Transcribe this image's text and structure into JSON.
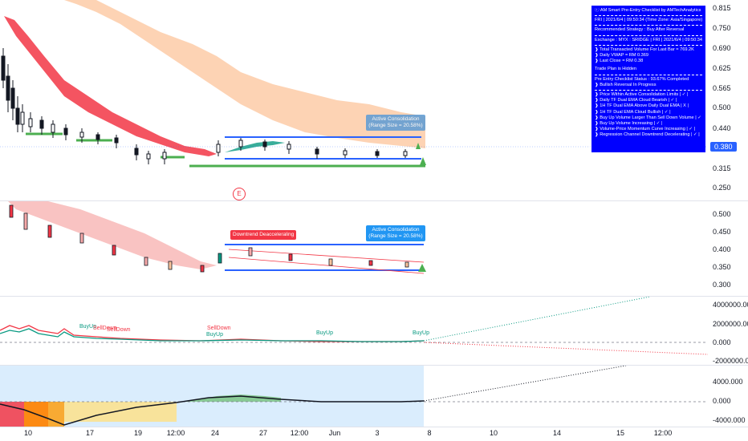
{
  "price_axis": [
    "0.815",
    "0.750",
    "0.690",
    "0.625",
    "0.565",
    "0.500",
    "0.440",
    "0.380",
    "0.315",
    "0.250"
  ],
  "last_price": "0.380",
  "pane2_axis": [
    "0.500",
    "0.450",
    "0.400",
    "0.350",
    "0.300"
  ],
  "pane3_axis": [
    "4000000.000",
    "2000000.000",
    "0.000",
    "-2000000.000"
  ],
  "pane4_axis": [
    "4000.000",
    "0.000",
    "-4000.000"
  ],
  "time_axis": [
    "10",
    "17",
    "19",
    "12:00",
    "24",
    "27",
    "12:00",
    "Jun",
    "3",
    "8",
    "10",
    "14",
    "15",
    "12:00"
  ],
  "checklist": {
    "title": "ⓘ AM Smart Pre-Entry Checklist by AMTechAnalytics",
    "date": "FRI | 2021/6/4 | 09:50:34 (Time Zone: Asia/Singapore)",
    "strategy": "Recommended Strategy : Buy After Reversal",
    "exchange": "Exchange : MYX : SRIDGE | FRI | 2021/6/4 | 09:50:34",
    "volume": "❱ Total Transacted Volume For Last Bar = 769.2K",
    "vwap": "❱ Daily VWAP = RM 0.369",
    "close": "❱ Last Close = RM 0.38",
    "hidden": "Trade Plan is Hidden",
    "status": "Pre Entry Checklist Status : 93.67% Completed",
    "status2": "❱ Bullish Reversal In Progress",
    "items": [
      "❱ Price Within Active Consolidation Limits | ✓ |",
      "❱ Daily TF Dual EMA Cloud Bearish | ✓ |",
      "❱ 1H TF Dual EMA Above Daily Dual EMA | X |",
      "❱ 1H TF Dual EMA Cloud Bullish | ✓ |",
      "❱ Buy Up Volume Larger Than Sell Down Volume | ✓ |",
      "❱ Buy Up Volume Increasing | ✓ |",
      "❱ Volume-Price Momentum Curve Increasing | ✓ |",
      "❱ Regression Channel Downtrend Decelerating | ✓ |"
    ]
  },
  "labels": {
    "consolidation_main": "Active Consolidation\n(Range Size = 20.58%)",
    "consolidation_pane2": "Active Consolidation\n(Range Size = 20.58%)",
    "downtrend": "Downtrend Deacceleraling",
    "e_marker": "E"
  },
  "signals": [
    {
      "text": "BuyUp",
      "color": "#089981"
    },
    {
      "text": "SellDown",
      "color": "#f23645"
    },
    {
      "text": "SellDown",
      "color": "#f23645"
    },
    {
      "text": "BuyUp",
      "color": "#089981"
    },
    {
      "text": "BuyUp",
      "color": "#089981"
    },
    {
      "text": "SellDown",
      "color": "#f23645"
    },
    {
      "text": "BuyUp",
      "color": "#089981"
    }
  ],
  "colors": {
    "accent": "#2962ff",
    "checklist_bg": "#0000ff",
    "bull": "#089981",
    "bear": "#f23645",
    "cloud_orange": "#fcc49b",
    "cloud_red": "#f23645"
  }
}
